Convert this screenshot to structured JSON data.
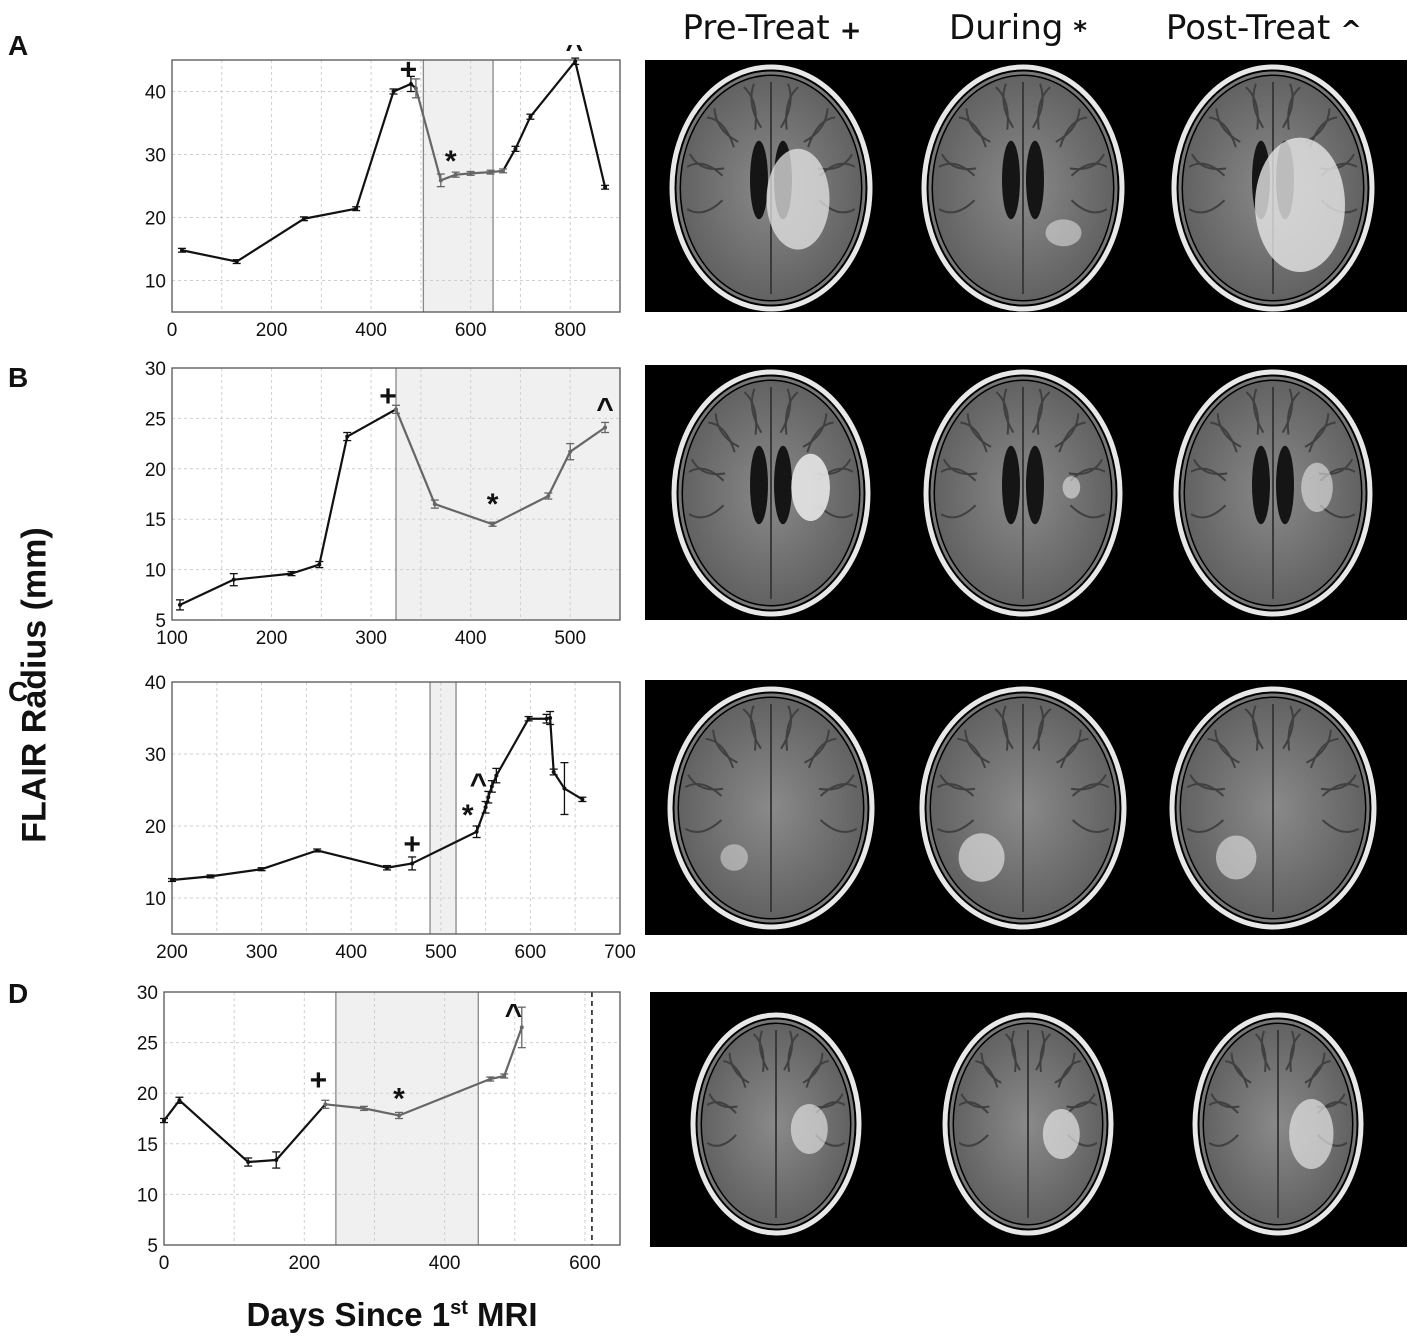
{
  "figure": {
    "ylabel": "FLAIR Radius (mm)",
    "xlabel_pre": "Days Since 1",
    "xlabel_sup": "st",
    "xlabel_post": " MRI",
    "column_headers": [
      {
        "label": "Pre-Treat",
        "marker": "+"
      },
      {
        "label": "During",
        "marker": "*"
      },
      {
        "label": "Post-Treat",
        "marker": "^"
      }
    ]
  },
  "colors": {
    "line_pre": "#111111",
    "line_treat": "#666666",
    "shade": "#f0f0f0",
    "grid": "#cfcfcf"
  },
  "chart_data": [
    {
      "panel": "A",
      "type": "line",
      "xlim": [
        0,
        900
      ],
      "ylim": [
        5,
        45
      ],
      "xticks": [
        0,
        200,
        400,
        600,
        800
      ],
      "yticks": [
        10,
        20,
        30,
        40
      ],
      "x_grid": [
        0,
        100,
        200,
        300,
        400,
        500,
        600,
        700,
        800,
        900
      ],
      "shade": [
        [
          505,
          645
        ]
      ],
      "vlines": [
        {
          "x": 505
        },
        {
          "x": 645
        }
      ],
      "x": [
        20,
        130,
        265,
        370,
        445,
        480,
        490,
        540,
        570,
        600,
        640,
        665,
        690,
        720,
        810,
        870
      ],
      "y": [
        14.8,
        13.0,
        19.8,
        21.4,
        40.0,
        41.2,
        40.5,
        25.9,
        26.8,
        27.0,
        27.2,
        27.4,
        30.9,
        36.0,
        44.8,
        24.8
      ],
      "err": [
        0.3,
        0.3,
        0.3,
        0.3,
        0.4,
        1.2,
        1.5,
        1.0,
        0.4,
        0.3,
        0.3,
        0.3,
        0.4,
        0.4,
        0.5,
        0.3
      ],
      "treat_idx": [
        6,
        11
      ],
      "markers": [
        {
          "x": 475,
          "y": 43.5,
          "label": "+"
        },
        {
          "x": 560,
          "y": 29.0,
          "label": "*"
        },
        {
          "x": 808,
          "y": 46.8,
          "label": "^"
        }
      ]
    },
    {
      "panel": "B",
      "type": "line",
      "xlim": [
        100,
        550
      ],
      "ylim": [
        5,
        30
      ],
      "xticks": [
        100,
        200,
        300,
        400,
        500
      ],
      "yticks": [
        5,
        10,
        15,
        20,
        25,
        30
      ],
      "x_grid": [
        100,
        150,
        200,
        250,
        300,
        350,
        400,
        450,
        500,
        550
      ],
      "shade": [
        [
          325,
          550
        ]
      ],
      "vlines": [
        {
          "x": 325
        }
      ],
      "x": [
        108,
        162,
        220,
        248,
        276,
        325,
        364,
        422,
        478,
        500,
        535
      ],
      "y": [
        6.5,
        9.0,
        9.6,
        10.5,
        23.2,
        25.9,
        16.5,
        14.5,
        17.3,
        21.7,
        24.1
      ],
      "err": [
        0.5,
        0.6,
        0.2,
        0.3,
        0.4,
        0.4,
        0.4,
        0.2,
        0.3,
        0.8,
        0.5
      ],
      "treat_idx": [
        5,
        10
      ],
      "markers": [
        {
          "x": 317,
          "y": 27.2,
          "label": "+"
        },
        {
          "x": 422,
          "y": 16.5,
          "label": "*"
        },
        {
          "x": 535,
          "y": 26.0,
          "label": "^"
        }
      ]
    },
    {
      "panel": "C",
      "type": "line",
      "xlim": [
        200,
        700
      ],
      "ylim": [
        5,
        40
      ],
      "xticks": [
        200,
        300,
        400,
        500,
        600,
        700
      ],
      "yticks": [
        10,
        20,
        30,
        40
      ],
      "x_grid": [
        200,
        250,
        300,
        350,
        400,
        450,
        500,
        550,
        600,
        650,
        700
      ],
      "shade": [
        [
          488,
          517
        ]
      ],
      "vlines": [
        {
          "x": 488
        },
        {
          "x": 517
        }
      ],
      "x": [
        200,
        243,
        300,
        362,
        440,
        468,
        540,
        550,
        553,
        557,
        562,
        598,
        618,
        622,
        626,
        638,
        658
      ],
      "y": [
        12.5,
        13.0,
        14.0,
        16.6,
        14.2,
        14.8,
        19.2,
        22.6,
        24.0,
        25.5,
        27.0,
        34.9,
        34.9,
        35.0,
        27.5,
        25.2,
        23.7
      ],
      "err": [
        0.2,
        0.2,
        0.2,
        0.2,
        0.3,
        0.9,
        0.8,
        0.8,
        0.8,
        0.8,
        1.0,
        0.3,
        0.6,
        0.9,
        0.4,
        3.6,
        0.3
      ],
      "treat_idx": [],
      "markers": [
        {
          "x": 468,
          "y": 17.5,
          "label": "+"
        },
        {
          "x": 530,
          "y": 21.5,
          "label": "*"
        },
        {
          "x": 542,
          "y": 25.8,
          "label": "^"
        }
      ]
    },
    {
      "panel": "D",
      "type": "line",
      "xlim": [
        0,
        650
      ],
      "ylim": [
        5,
        30
      ],
      "xticks": [
        0,
        200,
        400,
        600
      ],
      "yticks": [
        5,
        10,
        15,
        20,
        25,
        30
      ],
      "x_grid": [
        0,
        100,
        200,
        300,
        400,
        500,
        600
      ],
      "shade": [
        [
          245,
          448
        ]
      ],
      "vlines": [
        {
          "x": 245
        },
        {
          "x": 448
        }
      ],
      "dashed_vline": 610,
      "x": [
        0,
        22,
        120,
        160,
        230,
        285,
        335,
        465,
        485,
        510
      ],
      "y": [
        17.3,
        19.3,
        13.2,
        13.4,
        18.9,
        18.5,
        17.8,
        21.4,
        21.7,
        26.5
      ],
      "err": [
        0.2,
        0.3,
        0.4,
        0.8,
        0.4,
        0.2,
        0.3,
        0.2,
        0.2,
        2.0
      ],
      "treat_idx": [
        4,
        9
      ],
      "markers": [
        {
          "x": 220,
          "y": 21.3,
          "label": "+"
        },
        {
          "x": 335,
          "y": 19.5,
          "label": "*"
        },
        {
          "x": 498,
          "y": 27.8,
          "label": "^"
        }
      ]
    }
  ]
}
